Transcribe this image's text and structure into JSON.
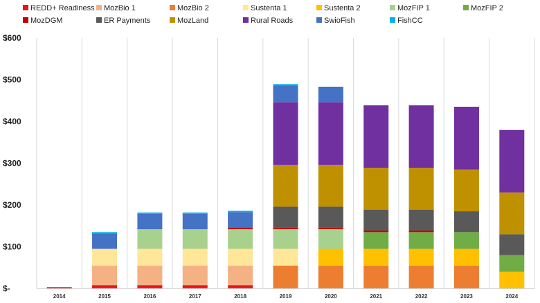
{
  "chart_data": {
    "type": "bar",
    "stacked": true,
    "categories": [
      "2014",
      "2015",
      "2016",
      "2017",
      "2018",
      "2019",
      "2020",
      "2021",
      "2022",
      "2023",
      "2024"
    ],
    "ylim": [
      0,
      600
    ],
    "yticks": [
      0,
      100,
      200,
      300,
      400,
      500,
      600
    ],
    "ytick_labels": [
      "$-",
      "$100",
      "$200",
      "$300",
      "$400",
      "$500",
      "$600"
    ],
    "grid": "vertical",
    "legend_position": "top",
    "series": [
      {
        "name": "REDD+ Readiness",
        "color": "#e8141c",
        "values": [
          3,
          8,
          8,
          8,
          8,
          0,
          0,
          0,
          0,
          0,
          0
        ]
      },
      {
        "name": "MozBio 1",
        "color": "#f4b183",
        "values": [
          0,
          47,
          47,
          47,
          47,
          0,
          0,
          0,
          0,
          0,
          0
        ]
      },
      {
        "name": "MozBio 2",
        "color": "#ed7d31",
        "values": [
          0,
          0,
          0,
          0,
          0,
          55,
          55,
          55,
          55,
          55,
          0
        ]
      },
      {
        "name": "Sustenta 1",
        "color": "#ffe699",
        "values": [
          0,
          40,
          40,
          40,
          40,
          40,
          0,
          0,
          0,
          0,
          0
        ]
      },
      {
        "name": "Sustenta 2",
        "color": "#ffc000",
        "values": [
          0,
          0,
          0,
          0,
          0,
          0,
          40,
          40,
          40,
          40,
          40
        ]
      },
      {
        "name": "MozFIP 1",
        "color": "#a9d18e",
        "values": [
          0,
          0,
          47,
          47,
          47,
          47,
          47,
          0,
          0,
          0,
          0
        ]
      },
      {
        "name": "MozFIP 2",
        "color": "#70ad47",
        "values": [
          0,
          0,
          0,
          0,
          0,
          0,
          0,
          40,
          40,
          40,
          40
        ]
      },
      {
        "name": "MozDGM",
        "color": "#c00000",
        "values": [
          0,
          0,
          0,
          0,
          4,
          4,
          4,
          4,
          4,
          0,
          0
        ]
      },
      {
        "name": "ER Payments",
        "color": "#595959",
        "values": [
          0,
          0,
          0,
          0,
          0,
          50,
          50,
          50,
          50,
          50,
          50
        ]
      },
      {
        "name": "MozLand",
        "color": "#bf9000",
        "values": [
          0,
          0,
          0,
          0,
          0,
          100,
          100,
          100,
          100,
          100,
          100
        ]
      },
      {
        "name": "Rural Roads",
        "color": "#7030a0",
        "values": [
          0,
          0,
          0,
          0,
          0,
          150,
          150,
          150,
          150,
          150,
          150
        ]
      },
      {
        "name": "SwioFish",
        "color": "#4472c4",
        "values": [
          0,
          37,
          37,
          37,
          37,
          40,
          37,
          0,
          0,
          0,
          0
        ]
      },
      {
        "name": "FishCC",
        "color": "#00b0f0",
        "values": [
          0,
          3,
          3,
          3,
          3,
          3,
          0,
          0,
          0,
          0,
          0
        ]
      }
    ]
  }
}
